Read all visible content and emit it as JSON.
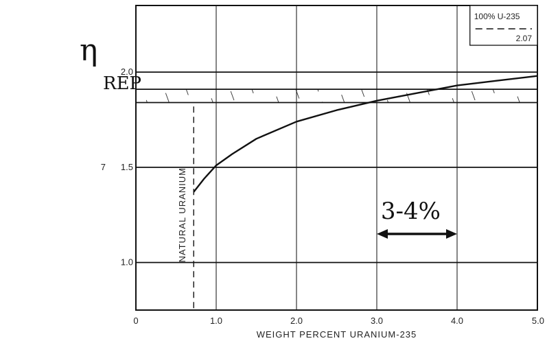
{
  "chart_data": {
    "type": "line",
    "title": "",
    "ylabel_symbol": "η",
    "ylabel_subscript": "REP",
    "xlabel": "WEIGHT PERCENT URANIUM-235",
    "xlim": [
      0,
      5
    ],
    "ylim": [
      0.75,
      2.35
    ],
    "x_ticks": [
      {
        "value": 0,
        "label": "0"
      },
      {
        "value": 1,
        "label": "1.0"
      },
      {
        "value": 2,
        "label": "2.0"
      },
      {
        "value": 3,
        "label": "3.0"
      },
      {
        "value": 4,
        "label": "4.0"
      },
      {
        "value": 5,
        "label": "5.0"
      }
    ],
    "y_ticks": [
      {
        "value": 1.0,
        "label": "1.0"
      },
      {
        "value": 1.5,
        "label": "1.5"
      },
      {
        "value": 2.0,
        "label": "2.0"
      }
    ],
    "y_extra_label": {
      "value": 1.5,
      "label": "7"
    },
    "grid": true,
    "series": [
      {
        "x": [
          0.72,
          0.85,
          1.0,
          1.2,
          1.5,
          2.0,
          2.5,
          3.0,
          3.5,
          4.0,
          4.5,
          5.0
        ],
        "y": [
          1.37,
          1.44,
          1.51,
          1.57,
          1.65,
          1.74,
          1.8,
          1.85,
          1.89,
          1.93,
          1.955,
          1.98
        ]
      }
    ],
    "natural_uranium_line": {
      "x": 0.72,
      "y_from": 0.76,
      "y_to": 1.83,
      "label": "NATURAL URANIUM"
    },
    "hatched_band": {
      "x_from": 0,
      "x_to": 5,
      "y_low": 1.84,
      "y_high": 1.91
    },
    "legend_box": {
      "label": "100% U-235",
      "value": "2.07"
    },
    "annotation": {
      "text": "3-4%",
      "x_from": 3.0,
      "x_to": 4.0,
      "y": 1.15
    }
  }
}
